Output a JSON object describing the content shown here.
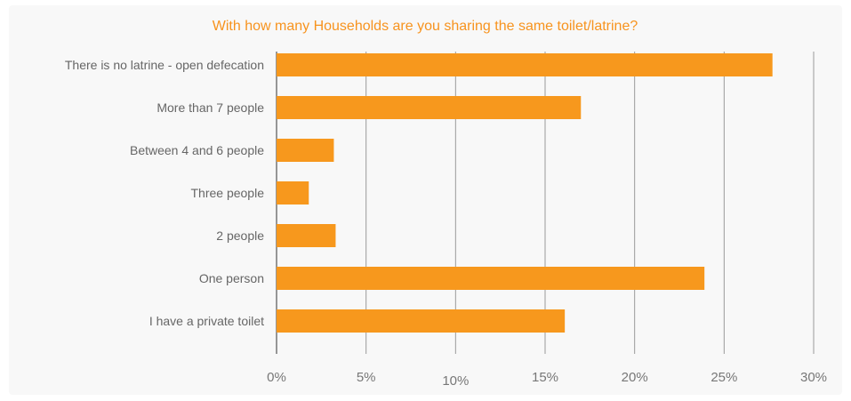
{
  "chart_data": {
    "type": "bar",
    "orientation": "horizontal",
    "title": "With how many Households are you sharing the same toilet/latrine?",
    "categories": [
      "There is no latrine - open defecation",
      "More than 7 people",
      "Between 4 and 6 people",
      "Three people",
      "2 people",
      "One person",
      "I have a private toilet"
    ],
    "values": [
      27.7,
      17.0,
      3.2,
      1.8,
      3.3,
      23.9,
      16.1
    ],
    "xlim": [
      0,
      30
    ],
    "x_ticks": [
      "0%",
      "5%",
      "10%",
      "15%",
      "20%",
      "25%",
      "30%"
    ],
    "grid": true,
    "bar_color": "#f7981d",
    "title_color": "#f7931e"
  }
}
